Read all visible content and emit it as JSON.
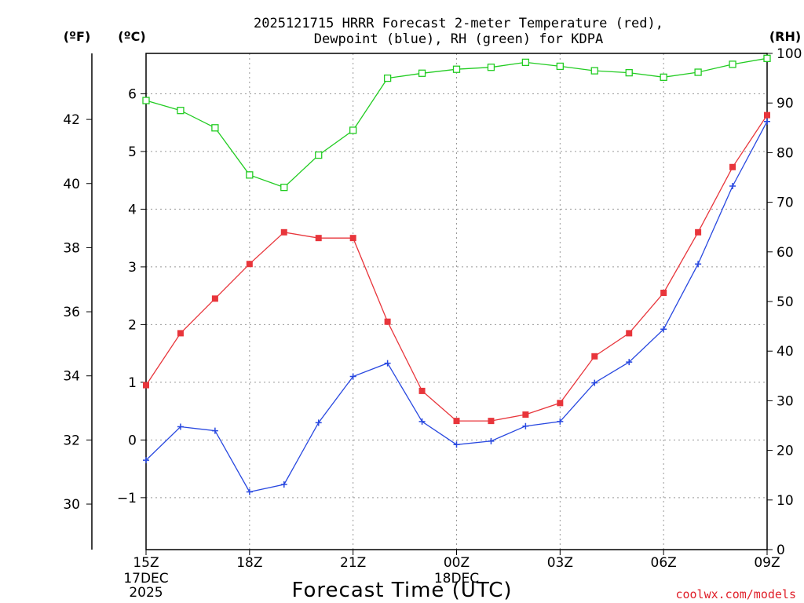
{
  "chart_data": {
    "type": "line",
    "title": "2025121715 HRRR Forecast 2-meter Temperature (red),",
    "subtitle": "Dewpoint (blue), RH (green) for KDPA",
    "xlabel": "Forecast Time (UTC)",
    "credit": "coolwx.com/models",
    "units": {
      "fahrenheit": "(ºF)",
      "celsius": "(ºC)",
      "rh": "(RH)"
    },
    "x_ticks": [
      {
        "hour": 0,
        "label": "15Z",
        "sub1": "17DEC",
        "sub2": "2025"
      },
      {
        "hour": 3,
        "label": "18Z",
        "sub1": "",
        "sub2": ""
      },
      {
        "hour": 6,
        "label": "21Z",
        "sub1": "",
        "sub2": ""
      },
      {
        "hour": 9,
        "label": "00Z",
        "sub1": "18DEC",
        "sub2": ""
      },
      {
        "hour": 12,
        "label": "03Z",
        "sub1": "",
        "sub2": ""
      },
      {
        "hour": 15,
        "label": "06Z",
        "sub1": "",
        "sub2": ""
      },
      {
        "hour": 18,
        "label": "09Z",
        "sub1": "",
        "sub2": ""
      }
    ],
    "xlim": [
      0,
      18
    ],
    "ylim_celsius": [
      -1.9,
      6.7
    ],
    "ylim_rh": [
      0,
      100
    ],
    "celsius_ticks": [
      -1,
      0,
      1,
      2,
      3,
      4,
      5,
      6
    ],
    "celsius_tick_labels": [
      "−1",
      "0",
      "1",
      "2",
      "3",
      "4",
      "5",
      "6"
    ],
    "fahrenheit_ticks": [
      30,
      32,
      34,
      36,
      38,
      40,
      42
    ],
    "rh_ticks": [
      0,
      10,
      20,
      30,
      40,
      50,
      60,
      70,
      80,
      90,
      100
    ],
    "grid": true,
    "series": [
      {
        "name": "Temperature",
        "axis": "celsius",
        "color": "#e8353b",
        "marker": "filled-square",
        "values": [
          0.95,
          1.85,
          2.45,
          3.05,
          3.6,
          3.5,
          3.5,
          2.05,
          0.85,
          0.33,
          0.33,
          0.44,
          0.64,
          1.45,
          1.85,
          2.55,
          3.6,
          4.73,
          5.63
        ]
      },
      {
        "name": "Dewpoint",
        "axis": "celsius",
        "color": "#2848e0",
        "marker": "plus",
        "values": [
          -0.35,
          0.23,
          0.16,
          -0.9,
          -0.77,
          0.3,
          1.1,
          1.33,
          0.32,
          -0.08,
          -0.02,
          0.24,
          0.32,
          0.99,
          1.35,
          1.92,
          3.05,
          4.4,
          5.52
        ]
      },
      {
        "name": "RH",
        "axis": "rh",
        "color": "#22cc22",
        "marker": "open-square",
        "values": [
          90.5,
          88.5,
          85,
          75.5,
          73,
          79.5,
          84.5,
          95,
          96,
          96.8,
          97.2,
          98.2,
          97.4,
          96.5,
          96.1,
          95.2,
          96.2,
          97.8,
          99
        ]
      }
    ]
  }
}
